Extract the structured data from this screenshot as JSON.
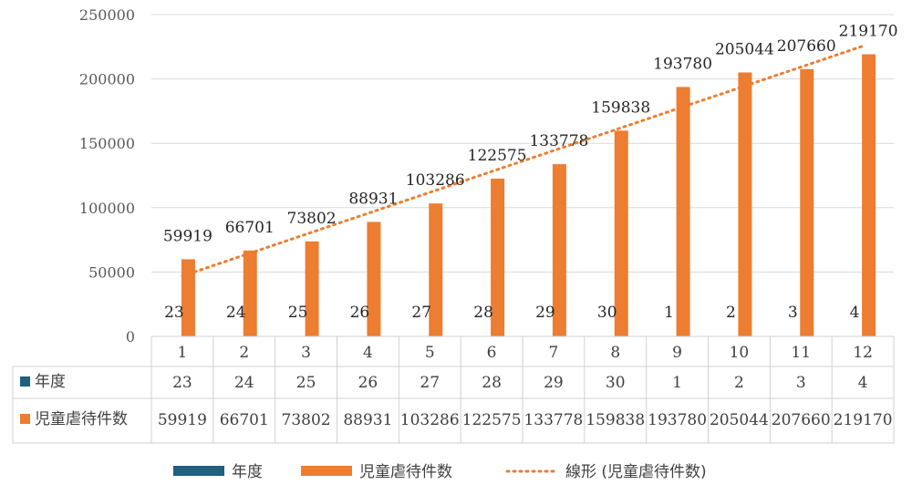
{
  "chart_data": {
    "type": "bar",
    "categories": [
      "1",
      "2",
      "3",
      "4",
      "5",
      "6",
      "7",
      "8",
      "9",
      "10",
      "11",
      "12"
    ],
    "series": [
      {
        "name": "年度",
        "values": [
          23,
          24,
          25,
          26,
          27,
          28,
          29,
          30,
          1,
          2,
          3,
          4
        ],
        "color": "#1f5f7f"
      },
      {
        "name": "児童虐待件数",
        "values": [
          59919,
          66701,
          73802,
          88931,
          103286,
          122575,
          133778,
          159838,
          193780,
          205044,
          207660,
          219170
        ],
        "color": "#ed7d31"
      }
    ],
    "trendline": {
      "name": "線形 (児童虐待件数)",
      "type": "linear",
      "color": "#ed7d31"
    },
    "ylim": [
      0,
      250000
    ],
    "yticks": [
      "0",
      "50000",
      "100000",
      "150000",
      "200000",
      "250000"
    ],
    "gridlines": true,
    "data_table": true,
    "legend": "bottom"
  }
}
